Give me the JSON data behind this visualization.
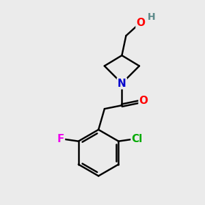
{
  "background_color": "#ebebeb",
  "atom_colors": {
    "C": "#000000",
    "N": "#0000cc",
    "O": "#ff0000",
    "F": "#ee00ee",
    "Cl": "#00aa00",
    "H": "#5c8a8a"
  },
  "bond_color": "#000000",
  "bond_width": 1.8,
  "fig_width": 3.0,
  "fig_height": 3.0,
  "dpi": 100
}
